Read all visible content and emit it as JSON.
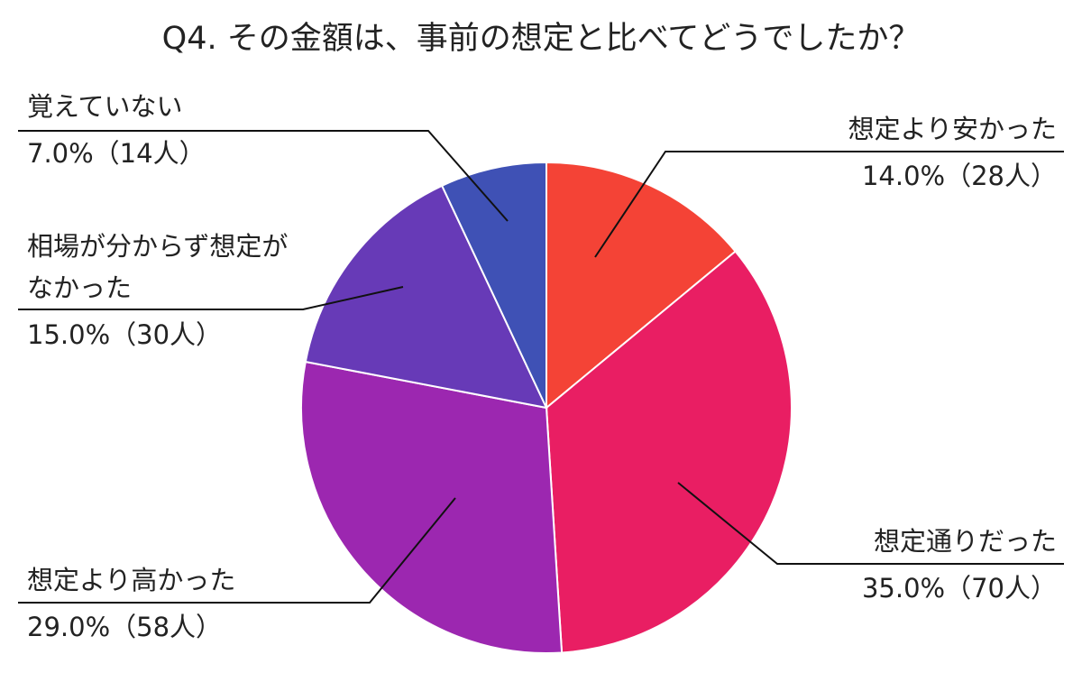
{
  "chart_data": {
    "type": "pie",
    "title": "Q4. その金額は、事前の想定と比べてどうでしたか？",
    "categories": [
      "想定より安かった",
      "想定通りだった",
      "想定より高かった",
      "相場が分からず想定が\nなかった",
      "覚えていない"
    ],
    "values": [
      14.0,
      35.0,
      29.0,
      15.0,
      7.0
    ],
    "value_labels": [
      "14.0%（28人）",
      "35.0%（70人）",
      "29.0%（58人）",
      "15.0%（30人）",
      "7.0%（14人）"
    ],
    "colors": [
      "#f44336",
      "#e91e63",
      "#9c27b0",
      "#673ab7",
      "#3f51b5"
    ]
  }
}
